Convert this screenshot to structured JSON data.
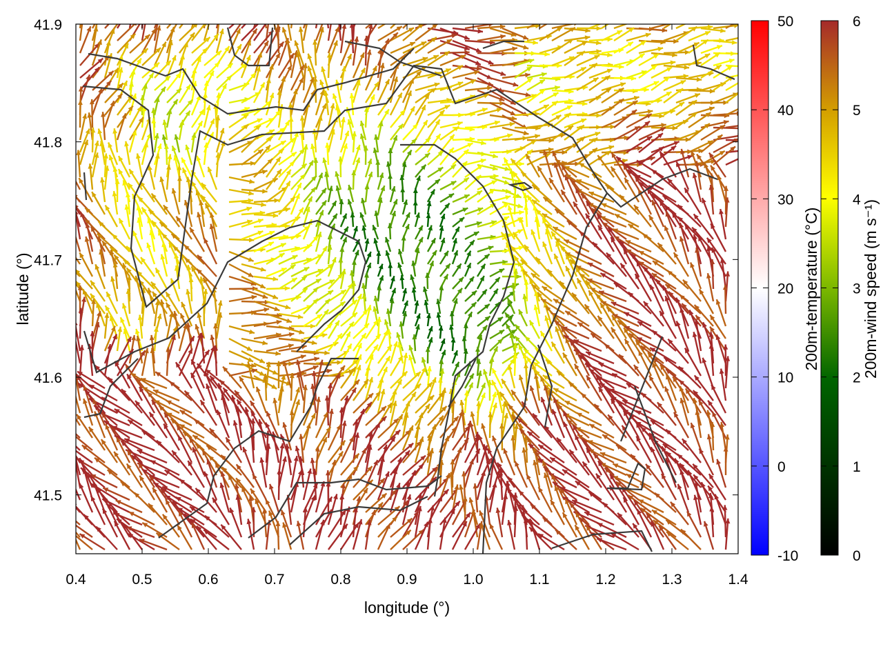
{
  "chart_data": {
    "type": "vector-field",
    "xlabel": "longitude (°)",
    "ylabel": "latitude (°)",
    "xlim": [
      0.4,
      1.4
    ],
    "ylim": [
      41.45,
      41.9
    ],
    "xticks": [
      "0.4",
      "0.5",
      "0.6",
      "0.7",
      "0.8",
      "0.9",
      "1.0",
      "1.1",
      "1.2",
      "1.3",
      "1.4"
    ],
    "yticks": [
      "41.5",
      "41.6",
      "41.7",
      "41.8",
      "41.9"
    ],
    "grid": false,
    "overlay": "coastline and administrative boundary contours (dark grey)",
    "arrows": {
      "variable": "200m-wind speed",
      "description": "wind vectors colored by speed; high speeds (~6 m/s, dark red) dominate the south and east, low speeds (green/dark green) in the north-central region"
    },
    "colorbars": [
      {
        "label": "200m-temperature (°C)",
        "range": [
          -10,
          50
        ],
        "ticks": [
          "-10",
          "0",
          "10",
          "20",
          "30",
          "40",
          "50"
        ],
        "colors": [
          "#0000ff",
          "#ffffff",
          "#ff0000"
        ]
      },
      {
        "label": "200m-wind speed (m s⁻¹)",
        "range": [
          0,
          6
        ],
        "ticks": [
          "0",
          "1",
          "2",
          "3",
          "4",
          "5",
          "6"
        ],
        "colors": [
          "#000000",
          "#006400",
          "#7cb800",
          "#ffff00",
          "#d4a000",
          "#a52a2a"
        ]
      }
    ]
  }
}
